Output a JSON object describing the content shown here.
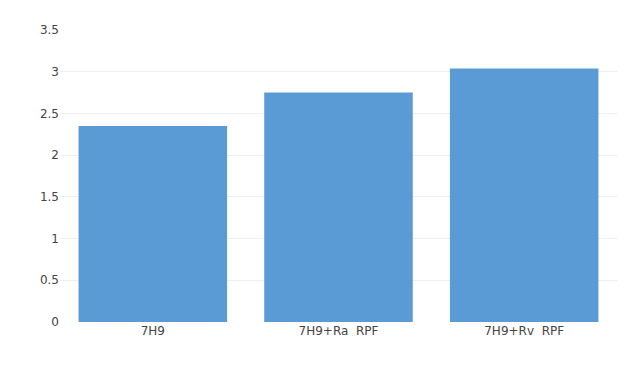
{
  "chart_data": {
    "type": "bar",
    "categories": [
      "7H9",
      "7H9+Ra  RPF",
      "7H9+Rv  RPF"
    ],
    "values": [
      2.35,
      2.75,
      3.04
    ],
    "color": "#5B9BD5",
    "ylim": [
      0,
      3.5
    ],
    "yticks": [
      0,
      0.5,
      1,
      1.5,
      2,
      2.5,
      3,
      3.5
    ],
    "grid": true
  }
}
